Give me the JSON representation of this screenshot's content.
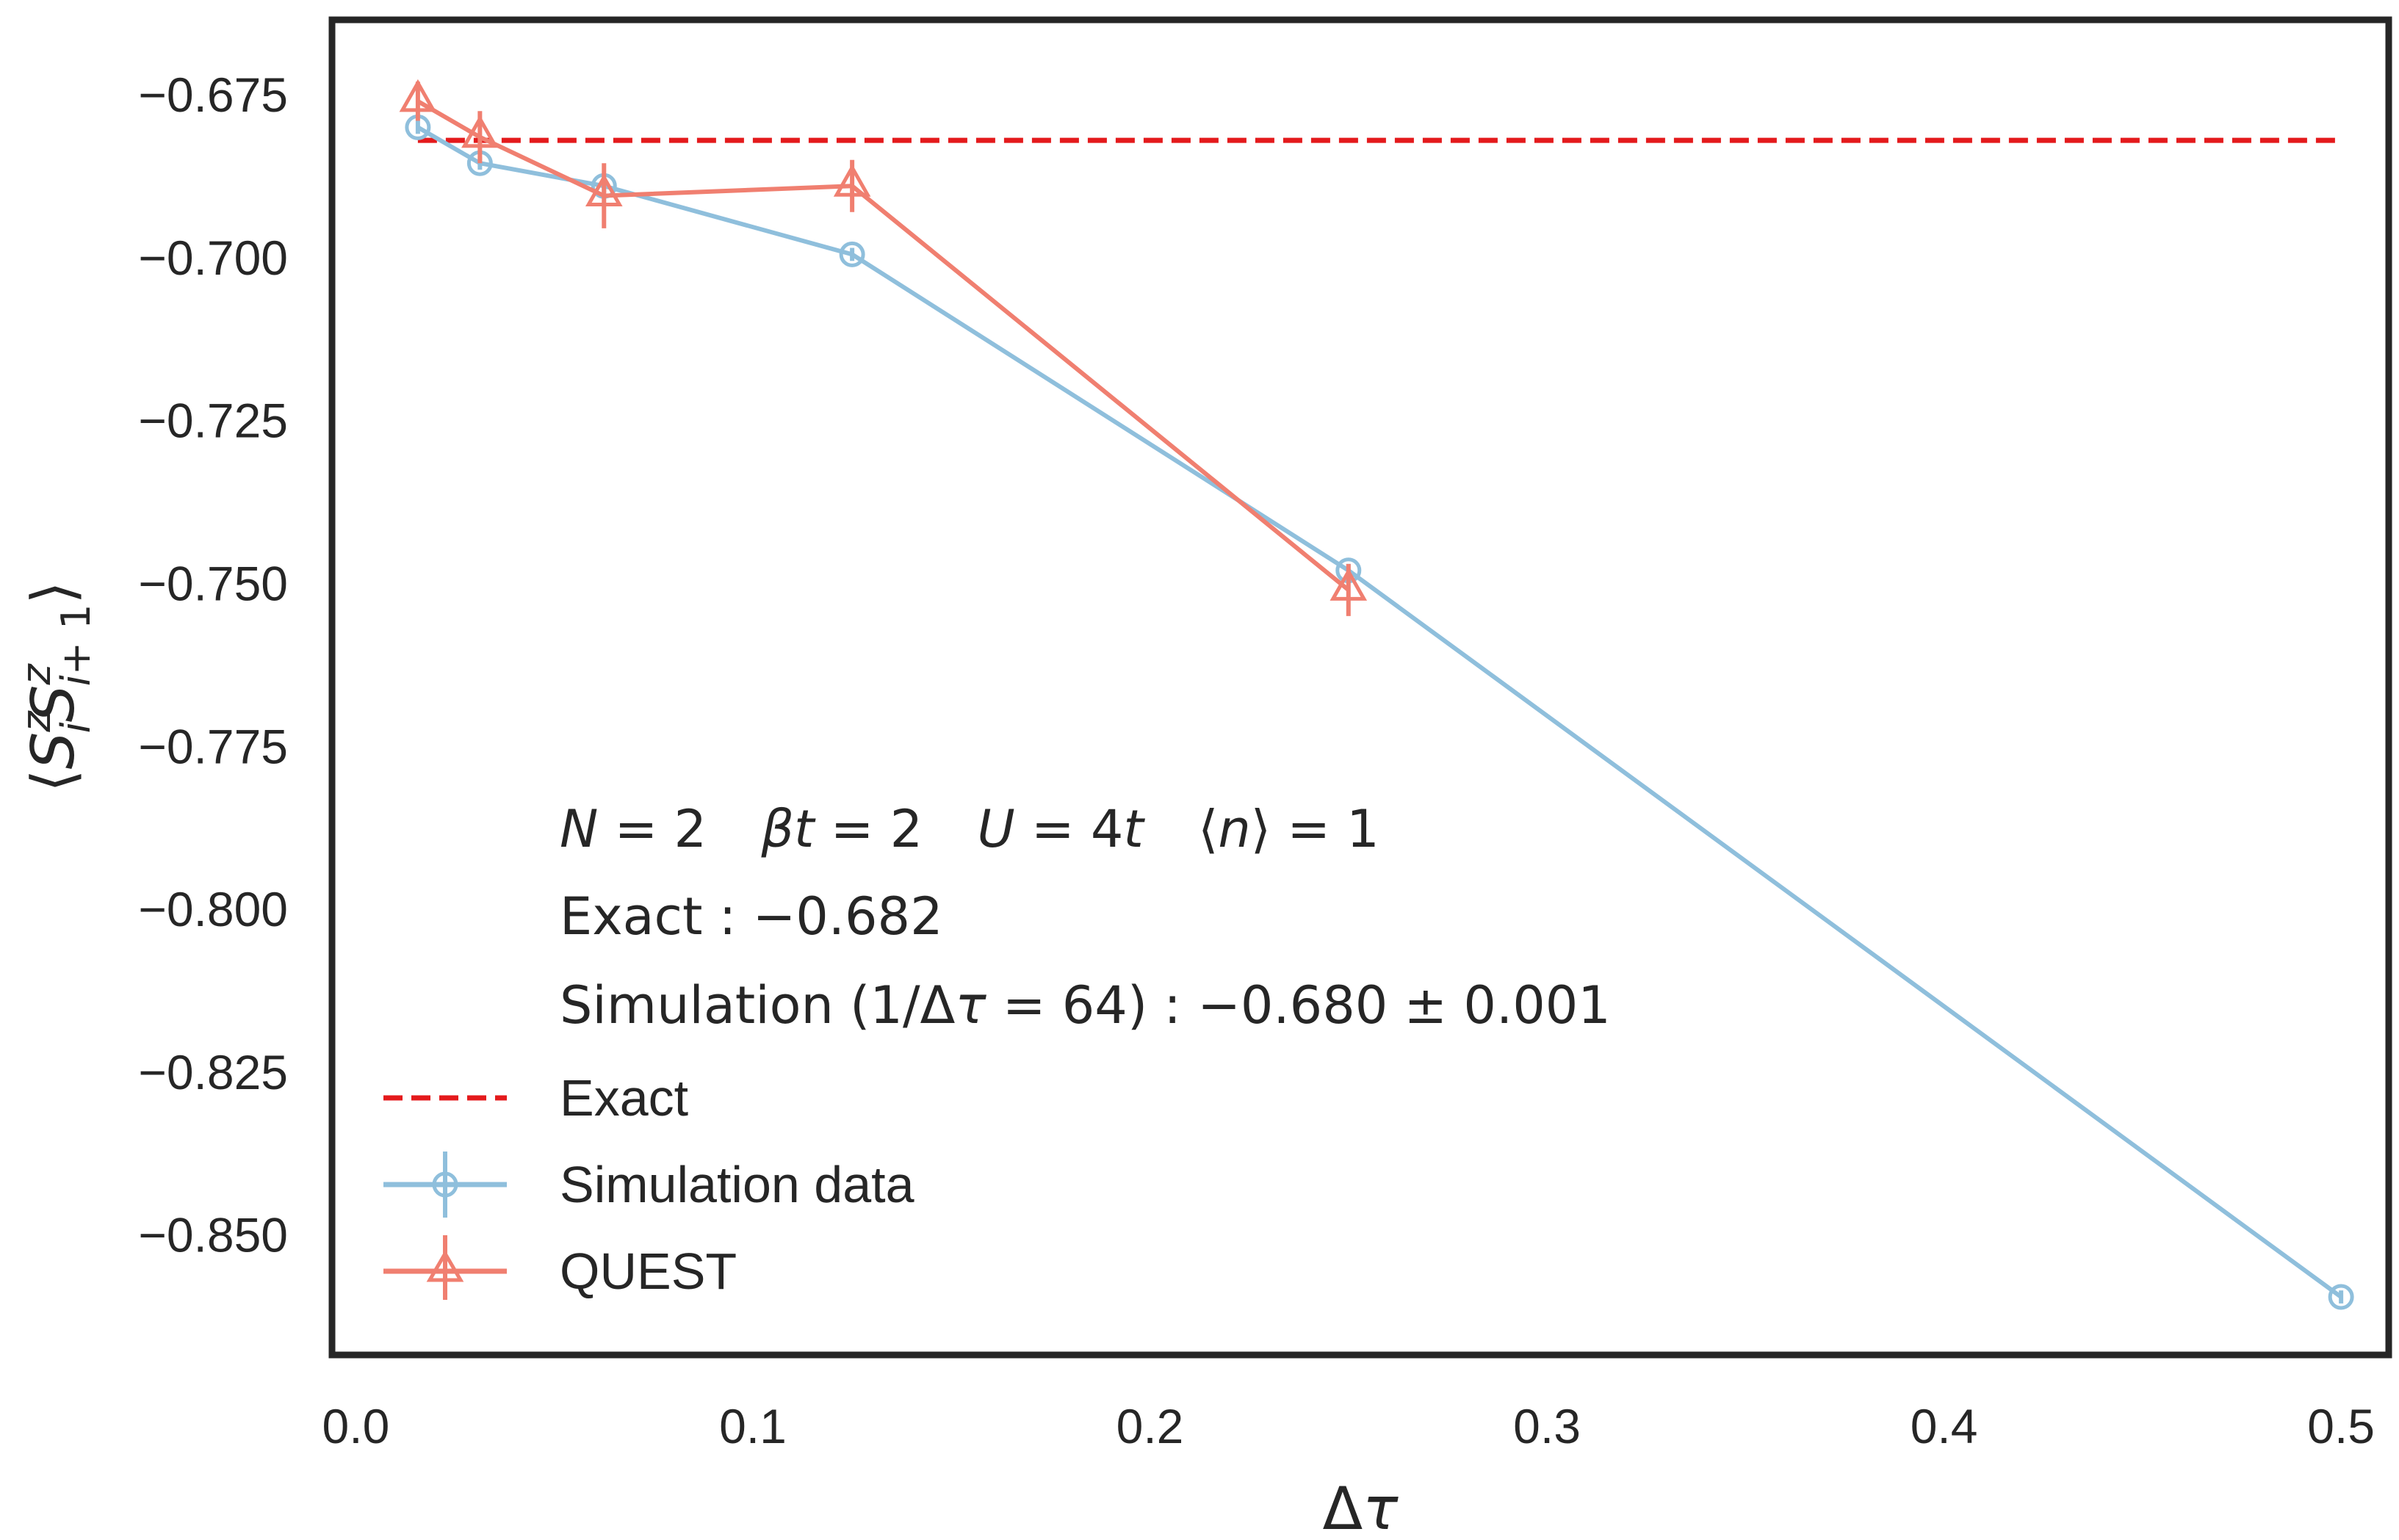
{
  "chart_data": {
    "type": "line",
    "xlabel": "Δτ",
    "ylabel": "⟨S_i^z S_{i+1}^z⟩",
    "xlim": [
      -0.006,
      0.512
    ],
    "ylim": [
      -0.8684,
      -0.6635
    ],
    "x_ticks": [
      0.0,
      0.1,
      0.2,
      0.3,
      0.4,
      0.5
    ],
    "x_tick_labels": [
      "0.0",
      "0.1",
      "0.2",
      "0.3",
      "0.4",
      "0.5"
    ],
    "y_ticks": [
      -0.675,
      -0.7,
      -0.725,
      -0.75,
      -0.775,
      -0.8,
      -0.825,
      -0.85
    ],
    "y_tick_labels": [
      "−0.675",
      "−0.700",
      "−0.725",
      "−0.750",
      "−0.775",
      "−0.800",
      "−0.825",
      "−0.850"
    ],
    "grid": false,
    "legend_position": "lower-left",
    "exact_value": -0.682,
    "series": [
      {
        "name": "Exact",
        "style": "dashed",
        "color": "#e41a1c",
        "x": [
          0.015625,
          0.5
        ],
        "y": [
          -0.682,
          -0.682
        ]
      },
      {
        "name": "Simulation data",
        "marker": "circle",
        "color": "#8fbfdc",
        "x": [
          0.015625,
          0.03125,
          0.0625,
          0.125,
          0.25,
          0.5
        ],
        "y": [
          -0.68,
          -0.6855,
          -0.689,
          -0.6995,
          -0.748,
          -0.8595
        ],
        "yerr": [
          0.001,
          0.001,
          0.001,
          0.001,
          0.001,
          0.001
        ]
      },
      {
        "name": "QUEST",
        "marker": "triangle",
        "color": "#f07f70",
        "x": [
          0.015625,
          0.03125,
          0.0625,
          0.125,
          0.25
        ],
        "y": [
          -0.676,
          -0.6815,
          -0.6905,
          -0.689,
          -0.751
        ],
        "yerr": [
          0.003,
          0.004,
          0.005,
          0.004,
          0.004
        ]
      }
    ],
    "annotations": {
      "line1": {
        "N_var": "N",
        "N_eq": " = 2",
        "beta_var": "βt",
        "beta_eq": " = 2",
        "U_var": "U",
        "U_eq": " = 4",
        "U_t": "t",
        "n_open": "⟨",
        "n_var": "n",
        "n_close": "⟩ = 1"
      },
      "line2": "Exact : −0.682",
      "line3_prefix": "Simulation (1/Δ",
      "line3_tau": "τ",
      "line3_suffix": " = 64) : −0.680 ± 0.001"
    },
    "legend": [
      "Exact",
      "Simulation data",
      "QUEST"
    ]
  }
}
